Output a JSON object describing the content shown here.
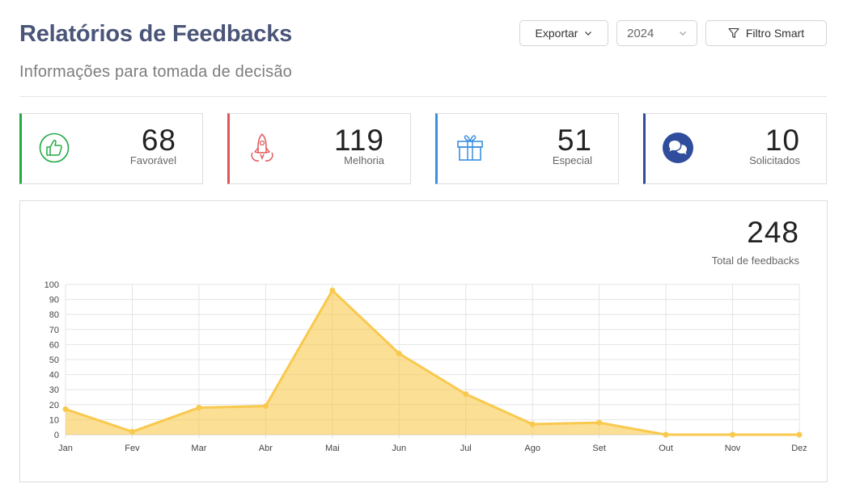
{
  "header": {
    "title": "Relatórios de Feedbacks",
    "subtitle": "Informações para tomada de decisão"
  },
  "toolbar": {
    "export_label": "Exportar",
    "year_value": "2024",
    "filter_label": "Filtro Smart"
  },
  "cards": [
    {
      "value": "68",
      "label": "Favorável",
      "color": "#22aa44",
      "icon": "thumbs-up-icon"
    },
    {
      "value": "119",
      "label": "Melhoria",
      "color": "#e05555",
      "icon": "rocket-icon"
    },
    {
      "value": "51",
      "label": "Especial",
      "color": "#3a8fe0",
      "icon": "gift-icon"
    },
    {
      "value": "10",
      "label": "Solicitados",
      "color": "#2f4d9c",
      "icon": "chat-bubbles-icon"
    }
  ],
  "total": {
    "value": "248",
    "label": "Total de feedbacks"
  },
  "chart_data": {
    "type": "area",
    "categories": [
      "Jan",
      "Fev",
      "Mar",
      "Abr",
      "Mai",
      "Jun",
      "Jul",
      "Ago",
      "Set",
      "Out",
      "Nov",
      "Dez"
    ],
    "series": [
      {
        "values": [
          17,
          2,
          18,
          19,
          96,
          54,
          27,
          7,
          8,
          0,
          0,
          0
        ],
        "color": "#f9c94e"
      }
    ],
    "ylim": [
      0,
      100
    ],
    "yticks": [
      0,
      10,
      20,
      30,
      40,
      50,
      60,
      70,
      80,
      90,
      100
    ],
    "grid": true
  }
}
